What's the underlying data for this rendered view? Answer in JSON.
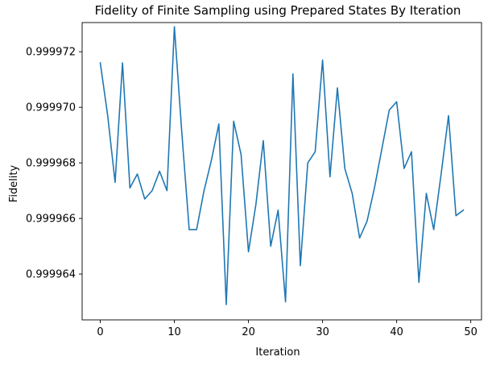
{
  "chart_data": {
    "type": "line",
    "title": "Fidelity of Finite Sampling using Prepared States By Iteration",
    "xlabel": "Iteration",
    "ylabel": "Fidelity",
    "xlim": [
      -2.45,
      51.45
    ],
    "ylim": [
      0.99996235,
      0.99997305
    ],
    "x_ticks": [
      0,
      10,
      20,
      30,
      40,
      50
    ],
    "x_tick_labels": [
      "0",
      "10",
      "20",
      "30",
      "40",
      "50"
    ],
    "y_ticks": [
      0.999964,
      0.999966,
      0.999968,
      0.99997,
      0.999972
    ],
    "y_tick_labels": [
      "0.999964",
      "0.999966",
      "0.999968",
      "0.999970",
      "0.999972"
    ],
    "grid": false,
    "series": [
      {
        "name": "Fidelity",
        "color": "#1f77b4",
        "x": [
          0,
          1,
          2,
          3,
          4,
          5,
          6,
          7,
          8,
          9,
          10,
          11,
          12,
          13,
          14,
          15,
          16,
          17,
          18,
          19,
          20,
          21,
          22,
          23,
          24,
          25,
          26,
          27,
          28,
          29,
          30,
          31,
          32,
          33,
          34,
          35,
          36,
          37,
          38,
          39,
          40,
          41,
          42,
          43,
          44,
          45,
          46,
          47,
          48,
          49
        ],
        "values": [
          0.9999716,
          0.9999697,
          0.9999673,
          0.9999716,
          0.9999671,
          0.9999676,
          0.9999667,
          0.999967,
          0.9999677,
          0.999967,
          0.9999729,
          0.9999691,
          0.9999656,
          0.9999656,
          0.999967,
          0.9999681,
          0.9999694,
          0.9999629,
          0.9999695,
          0.9999683,
          0.9999648,
          0.9999665,
          0.9999688,
          0.999965,
          0.9999663,
          0.999963,
          0.9999712,
          0.9999643,
          0.999968,
          0.9999684,
          0.9999717,
          0.9999675,
          0.9999707,
          0.9999678,
          0.9999669,
          0.9999653,
          0.9999659,
          0.9999671,
          0.9999685,
          0.9999699,
          0.9999702,
          0.9999678,
          0.9999684,
          0.9999637,
          0.9999669,
          0.9999656,
          0.9999676,
          0.9999697,
          0.9999661,
          0.9999663
        ]
      }
    ]
  }
}
